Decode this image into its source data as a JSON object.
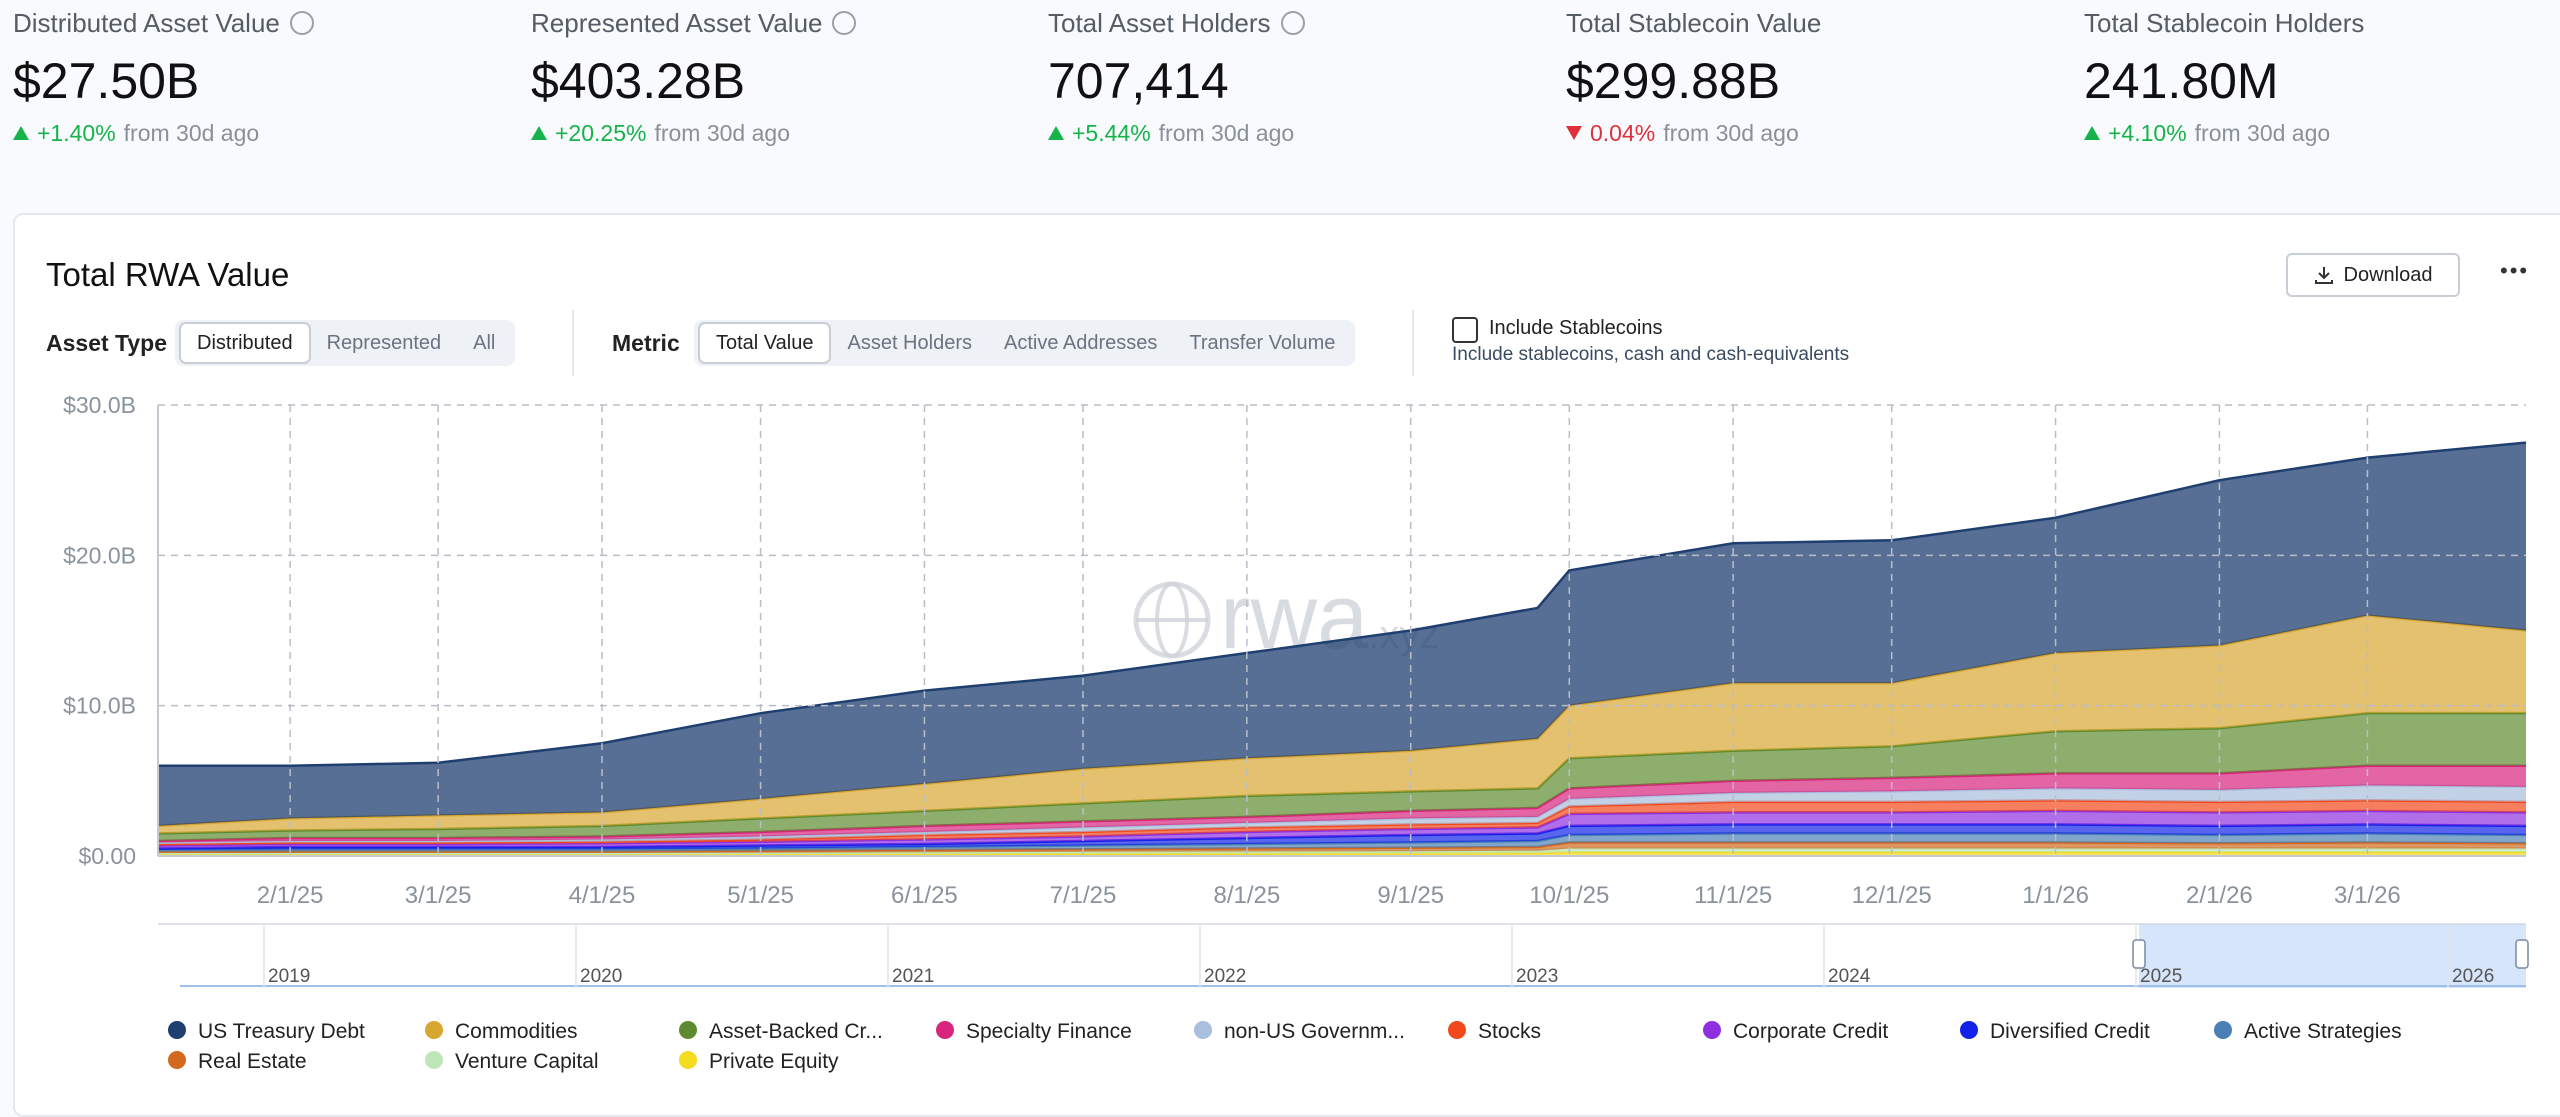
{
  "header": {
    "stats": [
      {
        "label": "Distributed Asset Value",
        "value": "$27.50B",
        "change": "+1.40%",
        "direction": "up",
        "suffix": "from 30d ago",
        "help": true
      },
      {
        "label": "Represented Asset Value",
        "value": "$403.28B",
        "change": "+20.25%",
        "direction": "up",
        "suffix": "from 30d ago",
        "help": true
      },
      {
        "label": "Total Asset Holders",
        "value": "707,414",
        "change": "+5.44%",
        "direction": "up",
        "suffix": "from 30d ago",
        "help": true
      },
      {
        "label": "Total Stablecoin Value",
        "value": "$299.88B",
        "change": "0.04%",
        "direction": "down",
        "suffix": "from 30d ago",
        "help": false
      },
      {
        "label": "Total Stablecoin Holders",
        "value": "241.80M",
        "change": "+4.10%",
        "direction": "up",
        "suffix": "from 30d ago",
        "help": false
      }
    ]
  },
  "controls": {
    "asset_type": {
      "label": "Asset Type",
      "options": [
        "Distributed",
        "Represented",
        "All"
      ],
      "selected": 0
    },
    "metric": {
      "label": "Metric",
      "options": [
        "Total Value",
        "Asset Holders",
        "Active Addresses",
        "Transfer Volume"
      ],
      "selected": 0
    },
    "stablecoins": {
      "label": "Include Stablecoins",
      "description": "Include stablecoins, cash and cash-equivalents",
      "checked": false
    },
    "download": "Download",
    "menu": "•••"
  },
  "chart_data": {
    "type": "stacked-area",
    "title": "Total RWA Value",
    "watermark": "rwa",
    "watermark_suffix": ".xyz",
    "x": [
      "1/7/25",
      "2/1/25",
      "3/1/25",
      "4/1/25",
      "5/1/25",
      "6/1/25",
      "7/1/25",
      "8/1/25",
      "9/1/25",
      "9/25/25",
      "10/1/25",
      "11/1/25",
      "12/1/25",
      "1/1/26",
      "2/1/26",
      "3/1/26",
      "3/31/26"
    ],
    "xlim": [
      "1/7/25",
      "3/31/26"
    ],
    "xticks": [
      "2/1/25",
      "3/1/25",
      "4/1/25",
      "5/1/25",
      "6/1/25",
      "7/1/25",
      "8/1/25",
      "9/1/25",
      "10/1/25",
      "11/1/25",
      "12/1/25",
      "1/1/26",
      "2/1/26",
      "3/1/26"
    ],
    "ylim": [
      0,
      30
    ],
    "yticks": [
      {
        "value": 0,
        "label": "$0.00"
      },
      {
        "value": 10,
        "label": "$10.0B"
      },
      {
        "value": 20,
        "label": "$20.0B"
      },
      {
        "value": 30,
        "label": "$30.0B"
      }
    ],
    "grid": true,
    "series": [
      {
        "name": "US Treasury Debt",
        "color": "#1f3f70",
        "values": [
          4.0,
          3.5,
          3.5,
          4.6,
          5.7,
          6.2,
          6.2,
          7.0,
          8.0,
          8.7,
          9.0,
          9.3,
          9.5,
          9.0,
          11.0,
          10.5,
          12.5
        ]
      },
      {
        "name": "Commodities",
        "color": "#d9a630",
        "values": [
          0.5,
          0.8,
          0.9,
          0.9,
          1.3,
          1.8,
          2.3,
          2.5,
          2.7,
          3.3,
          3.5,
          4.5,
          4.2,
          5.2,
          5.5,
          6.5,
          5.5
        ]
      },
      {
        "name": "Asset-Backed Cr...",
        "color": "#5e8b2f",
        "values": [
          0.5,
          0.5,
          0.6,
          0.7,
          0.9,
          1.0,
          1.2,
          1.4,
          1.3,
          1.3,
          2.0,
          2.0,
          2.1,
          2.8,
          3.0,
          3.5,
          3.5
        ]
      },
      {
        "name": "Specialty Finance",
        "color": "#d8247c",
        "values": [
          0.1,
          0.2,
          0.2,
          0.2,
          0.3,
          0.4,
          0.4,
          0.4,
          0.5,
          0.6,
          0.7,
          0.8,
          0.9,
          1.0,
          1.1,
          1.3,
          1.4
        ]
      },
      {
        "name": "non-US Governm...",
        "color": "#aabedd",
        "values": [
          0.1,
          0.1,
          0.1,
          0.15,
          0.2,
          0.2,
          0.3,
          0.3,
          0.4,
          0.4,
          0.5,
          0.6,
          0.7,
          0.8,
          0.8,
          1.0,
          1.0
        ]
      },
      {
        "name": "Stocks",
        "color": "#f2491c",
        "values": [
          0.1,
          0.1,
          0.1,
          0.1,
          0.15,
          0.3,
          0.3,
          0.3,
          0.3,
          0.3,
          0.5,
          0.7,
          0.7,
          0.7,
          0.7,
          0.7,
          0.7
        ]
      },
      {
        "name": "Corporate Credit",
        "color": "#8e30e0",
        "values": [
          0.2,
          0.2,
          0.2,
          0.25,
          0.25,
          0.3,
          0.3,
          0.4,
          0.4,
          0.4,
          0.8,
          0.8,
          0.8,
          0.9,
          0.9,
          0.9,
          0.9
        ]
      },
      {
        "name": "Diversified Credit",
        "color": "#1222e8",
        "values": [
          0.1,
          0.15,
          0.15,
          0.15,
          0.2,
          0.2,
          0.3,
          0.4,
          0.5,
          0.5,
          0.6,
          0.6,
          0.6,
          0.6,
          0.6,
          0.6,
          0.6
        ]
      },
      {
        "name": "Active Strategies",
        "color": "#4a80b6",
        "values": [
          0.1,
          0.15,
          0.15,
          0.15,
          0.15,
          0.2,
          0.25,
          0.3,
          0.35,
          0.4,
          0.5,
          0.6,
          0.6,
          0.6,
          0.55,
          0.6,
          0.55
        ]
      },
      {
        "name": "Real Estate",
        "color": "#d2691e",
        "values": [
          0.1,
          0.1,
          0.1,
          0.1,
          0.13,
          0.15,
          0.17,
          0.2,
          0.23,
          0.25,
          0.4,
          0.4,
          0.4,
          0.4,
          0.35,
          0.4,
          0.35
        ]
      },
      {
        "name": "Venture Capital",
        "color": "#bfe6b8",
        "values": [
          0.1,
          0.1,
          0.1,
          0.1,
          0.1,
          0.11,
          0.13,
          0.14,
          0.15,
          0.17,
          0.25,
          0.25,
          0.25,
          0.25,
          0.25,
          0.25,
          0.25
        ]
      },
      {
        "name": "Private Equity",
        "color": "#f5dc1e",
        "values": [
          0.1,
          0.1,
          0.1,
          0.1,
          0.12,
          0.14,
          0.15,
          0.16,
          0.17,
          0.18,
          0.25,
          0.25,
          0.25,
          0.25,
          0.25,
          0.25,
          0.25
        ]
      }
    ],
    "navigator": {
      "labels": [
        "2019",
        "2020",
        "2021",
        "2022",
        "2023",
        "2024",
        "2025",
        "2026"
      ]
    }
  }
}
